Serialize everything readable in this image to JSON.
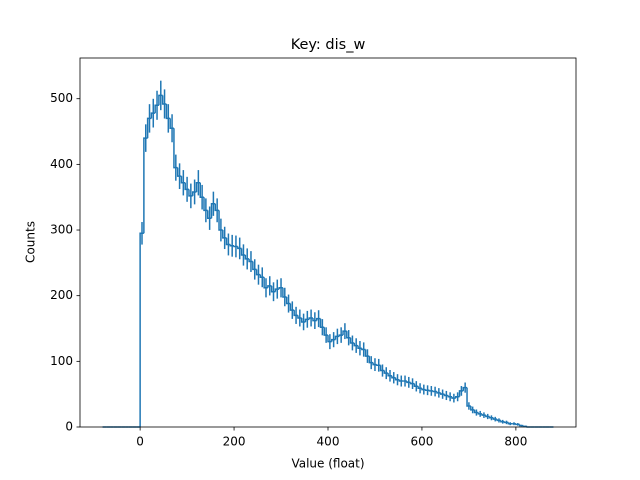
{
  "chart_data": {
    "type": "histogram",
    "title": "Key: dis_w",
    "xlabel": "Value (float)",
    "ylabel": "Counts",
    "color": "#1f77b4",
    "histtype": "step",
    "errorbars": true,
    "xlim": [
      -128,
      928
    ],
    "ylim": [
      0,
      562
    ],
    "xticks": [
      0,
      200,
      400,
      600,
      800
    ],
    "yticks": [
      0,
      100,
      200,
      300,
      400,
      500
    ],
    "bins": [
      -80,
      -72,
      -64,
      -56,
      -48,
      -40,
      -32,
      -24,
      -16,
      -8,
      0,
      8,
      16,
      24,
      32,
      40,
      48,
      56,
      64,
      72,
      80,
      88,
      96,
      104,
      112,
      120,
      128,
      136,
      144,
      152,
      160,
      168,
      176,
      184,
      192,
      200,
      208,
      216,
      224,
      232,
      240,
      248,
      256,
      264,
      272,
      280,
      288,
      296,
      304,
      312,
      320,
      328,
      336,
      344,
      352,
      360,
      368,
      376,
      384,
      392,
      400,
      408,
      416,
      424,
      432,
      440,
      448,
      456,
      464,
      472,
      480,
      488,
      496,
      504,
      512,
      520,
      528,
      536,
      544,
      552,
      560,
      568,
      576,
      584,
      592,
      600,
      608,
      616,
      624,
      632,
      640,
      648,
      656,
      664,
      672,
      680,
      688,
      696,
      704,
      712,
      720,
      728,
      736,
      744,
      752,
      760,
      768,
      776,
      784,
      792,
      800,
      808,
      816,
      824,
      832,
      840,
      848,
      856,
      864,
      872,
      880
    ],
    "values": [
      0,
      0,
      0,
      0,
      0,
      0,
      0,
      0,
      0,
      0,
      295,
      440,
      470,
      478,
      490,
      505,
      492,
      470,
      455,
      395,
      382,
      372,
      362,
      352,
      358,
      372,
      350,
      330,
      318,
      340,
      330,
      300,
      288,
      278,
      276,
      275,
      272,
      262,
      256,
      252,
      240,
      232,
      228,
      212,
      215,
      206,
      210,
      212,
      198,
      188,
      178,
      170,
      166,
      160,
      164,
      166,
      162,
      165,
      152,
      140,
      130,
      133,
      138,
      140,
      146,
      136,
      128,
      124,
      120,
      118,
      108,
      98,
      95,
      94,
      86,
      82,
      78,
      75,
      72,
      70,
      70,
      68,
      66,
      62,
      59,
      57,
      56,
      55,
      54,
      52,
      50,
      48,
      46,
      44,
      46,
      55,
      60,
      32,
      26,
      22,
      20,
      18,
      16,
      14,
      12,
      10,
      8,
      7,
      5,
      5,
      4,
      2,
      1,
      0,
      0,
      0,
      0,
      0,
      0,
      0
    ]
  }
}
